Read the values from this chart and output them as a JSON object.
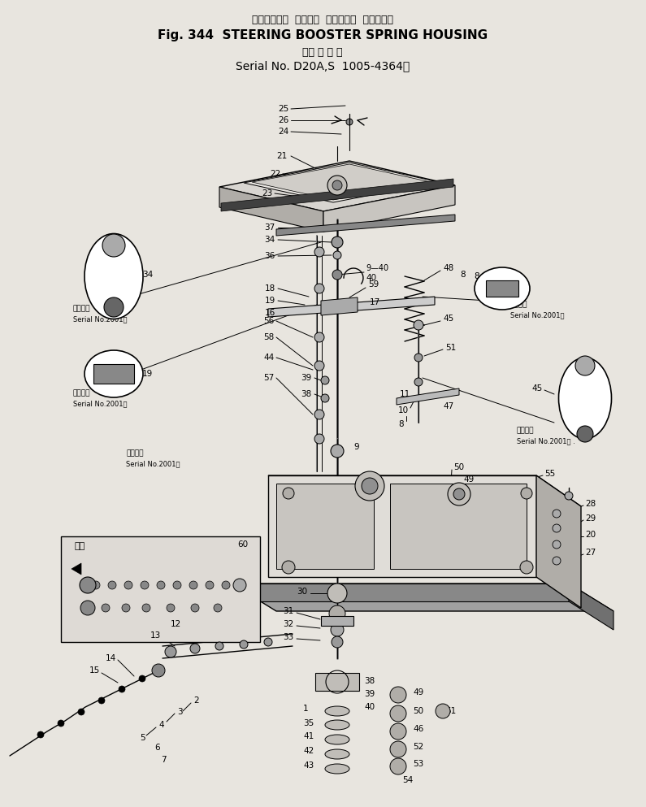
{
  "title_jp": "ステアリング  ブースタ  スプリング  ハウジング",
  "title_en": "Fig. 344  STEERING BOOSTER SPRING HOUSING",
  "subtitle_jp": "適 用 号 機",
  "subtitle_en": "Serial No. D20A,S  1005-4364",
  "bg_color": "#e8e5df",
  "figsize": [
    7.95,
    9.93
  ],
  "dpi": 100
}
